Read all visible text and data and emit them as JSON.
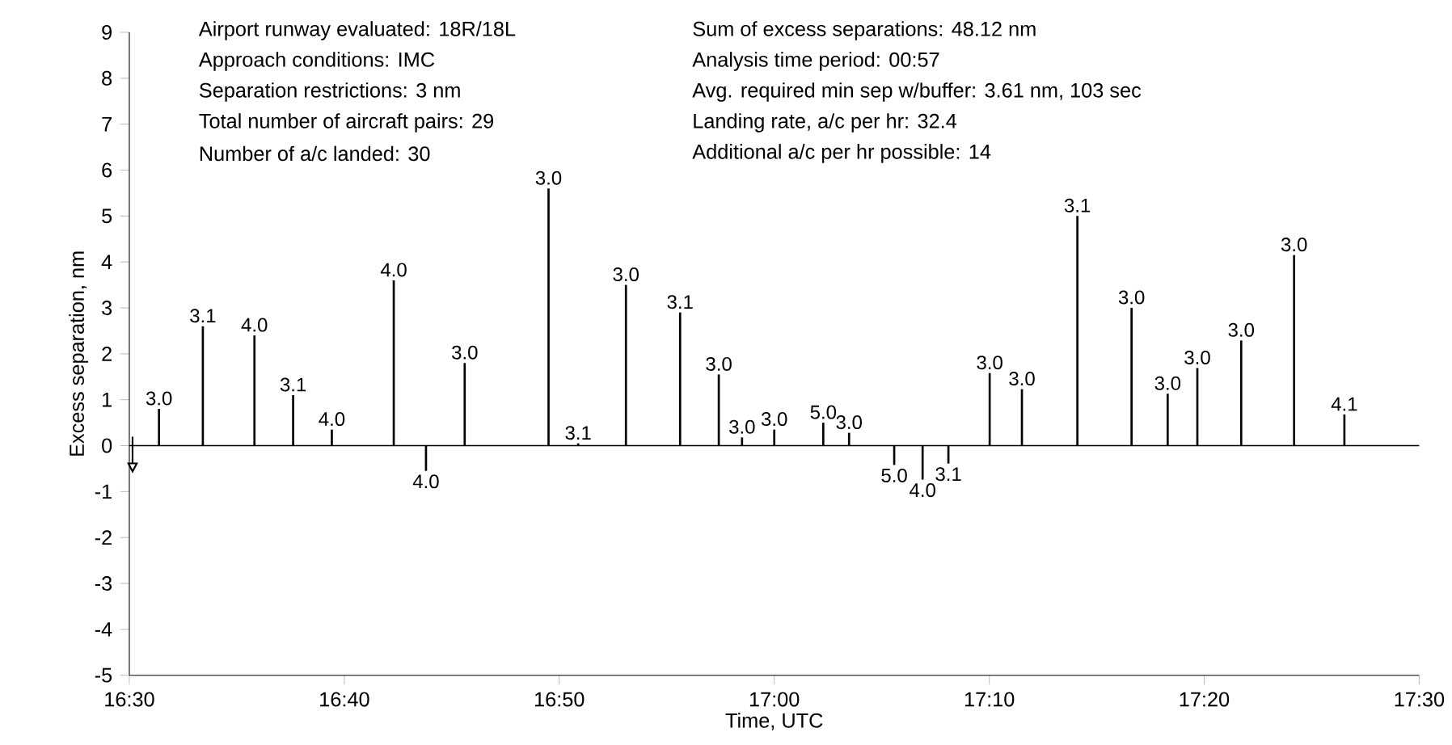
{
  "chart_data": {
    "type": "bar",
    "xlabel": "Time, UTC",
    "ylabel": "Excess separation, nm",
    "color": "#000000",
    "x": [
      16.523,
      16.557,
      16.597,
      16.627,
      16.657,
      16.705,
      16.73,
      16.76,
      16.825,
      16.848,
      16.885,
      16.927,
      16.957,
      16.975,
      17.0,
      17.038,
      17.058,
      17.093,
      17.115,
      17.135,
      17.167,
      17.192,
      17.235,
      17.277,
      17.305,
      17.328,
      17.362,
      17.403,
      17.442
    ],
    "values": [
      0.8,
      2.6,
      2.4,
      1.1,
      0.35,
      3.6,
      -0.55,
      1.8,
      5.6,
      0.05,
      3.5,
      2.9,
      1.55,
      0.18,
      0.35,
      0.5,
      0.28,
      -0.42,
      -0.74,
      -0.39,
      1.58,
      1.23,
      5.0,
      3.0,
      1.13,
      1.69,
      2.29,
      4.15,
      0.68
    ],
    "xlim": [
      16.5,
      17.5
    ],
    "xticks": [
      {
        "value": 16.5,
        "label": "16:30"
      },
      {
        "value": 16.6667,
        "label": "16:40"
      },
      {
        "value": 16.8333,
        "label": "16:50"
      },
      {
        "value": 17.0,
        "label": "17:00"
      },
      {
        "value": 17.1667,
        "label": "17:10"
      },
      {
        "value": 17.3333,
        "label": "17:20"
      },
      {
        "value": 17.5,
        "label": "17:30"
      }
    ],
    "ylim": [
      -5,
      9
    ],
    "yticks": [
      -5,
      -4,
      -3,
      -2,
      -1,
      0,
      1,
      2,
      3,
      4,
      5,
      6,
      7,
      8,
      9
    ],
    "ref_lines": [
      {
        "axis": "y",
        "value": 0
      }
    ],
    "grid": false,
    "annotations": [
      "Airport runway evaluated:  18R/18L",
      "Approach conditions:  IMC",
      "Separation restrictions:  3 nm",
      "Total number of aircraft pairs:  29",
      "Number of a/c landed:  30",
      "Sum of excess separations:  48.12 nm",
      "Analysis time period:  00:57",
      "Avg. required min sep w/buffer:  3.61 nm, 103 sec",
      "Landing rate, a/c per hr:  32.4",
      "Additional a/c per hr possible:  14",
      {
        "text": "3.0",
        "x": 16.523,
        "y": 0.8
      },
      {
        "text": "3.1",
        "x": 16.557,
        "y": 2.6
      },
      {
        "text": "4.0",
        "x": 16.597,
        "y": 2.4
      },
      {
        "text": "3.1",
        "x": 16.627,
        "y": 1.1
      },
      {
        "text": "4.0",
        "x": 16.657,
        "y": 0.35
      },
      {
        "text": "4.0",
        "x": 16.705,
        "y": 3.6
      },
      {
        "text": "4.0",
        "x": 16.73,
        "y": -0.55
      },
      {
        "text": "3.0",
        "x": 16.76,
        "y": 1.8
      },
      {
        "text": "3.0",
        "x": 16.825,
        "y": 5.6
      },
      {
        "text": "3.1",
        "x": 16.848,
        "y": 0.05
      },
      {
        "text": "3.0",
        "x": 16.885,
        "y": 3.5
      },
      {
        "text": "3.1",
        "x": 16.927,
        "y": 2.9
      },
      {
        "text": "3.0",
        "x": 16.957,
        "y": 1.55
      },
      {
        "text": "3.0",
        "x": 16.975,
        "y": 0.18
      },
      {
        "text": "3.0",
        "x": 17.0,
        "y": 0.35
      },
      {
        "text": "5.0",
        "x": 17.038,
        "y": 0.5
      },
      {
        "text": "3.0",
        "x": 17.058,
        "y": 0.28
      },
      {
        "text": "5.0",
        "x": 17.093,
        "y": -0.42
      },
      {
        "text": "4.0",
        "x": 17.115,
        "y": -0.74
      },
      {
        "text": "3.1",
        "x": 17.135,
        "y": -0.39
      },
      {
        "text": "3.0",
        "x": 17.167,
        "y": 1.58
      },
      {
        "text": "3.0",
        "x": 17.192,
        "y": 1.23
      },
      {
        "text": "3.1",
        "x": 17.235,
        "y": 5.0
      },
      {
        "text": "3.0",
        "x": 17.277,
        "y": 3.0
      },
      {
        "text": "3.0",
        "x": 17.305,
        "y": 1.13
      },
      {
        "text": "3.0",
        "x": 17.328,
        "y": 1.69
      },
      {
        "text": "3.0",
        "x": 17.362,
        "y": 2.29
      },
      {
        "text": "3.0",
        "x": 17.403,
        "y": 4.15
      },
      {
        "text": "4.1",
        "x": 17.442,
        "y": 0.68
      }
    ]
  }
}
